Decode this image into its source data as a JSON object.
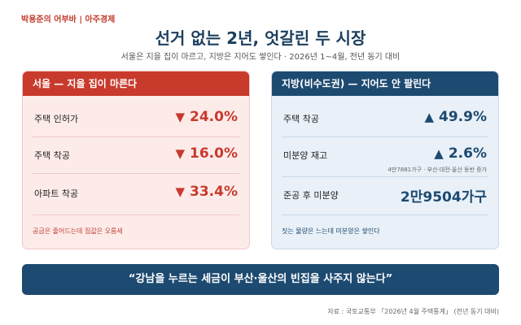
{
  "source_tag": "박용준의 어부바 | 아주경제",
  "headline": "선거 없는 2년, 엇갈린 두 시장",
  "subhead": "서울은 지을 집이 마르고, 지방은 지어도 쌓인다 · 2026년 1~4월, 전년 동기 대비",
  "left_panel": {
    "title": "서울 — 지을 집이 마른다",
    "rows": [
      {
        "label": "주택 인허가",
        "arrow": "▼",
        "value": "24.0%"
      },
      {
        "label": "주택 착공",
        "arrow": "▼",
        "value": "16.0%"
      },
      {
        "label": "아파트 착공",
        "arrow": "▼",
        "value": "33.4%"
      }
    ],
    "footer": "공급은 줄어드는데 집값은 오름세",
    "accent_color": "#c83a2c"
  },
  "right_panel": {
    "title": "지방(비수도권) — 지어도 안 팔린다",
    "rows": [
      {
        "label": "주택 착공",
        "arrow": "▲",
        "value": "49.9%",
        "note": ""
      },
      {
        "label": "미분양 재고",
        "arrow": "▲",
        "value": "2.6%",
        "note": "4만7881가구 · 부산·대전·울산 동반 증가"
      },
      {
        "label": "준공 후 미분양",
        "arrow": "",
        "value": "2만9504가구",
        "note": ""
      }
    ],
    "footer": "짓는 물량은 느는데 미분양은 쌓인다",
    "accent_color": "#1d4a70"
  },
  "quote": "“강남을 누르는 세금이 부산·울산의 빈집을 사주지 않는다”",
  "credit": "자료 : 국토교통부 「2026년 4월 주택통계」 (전년 동기 대비)"
}
